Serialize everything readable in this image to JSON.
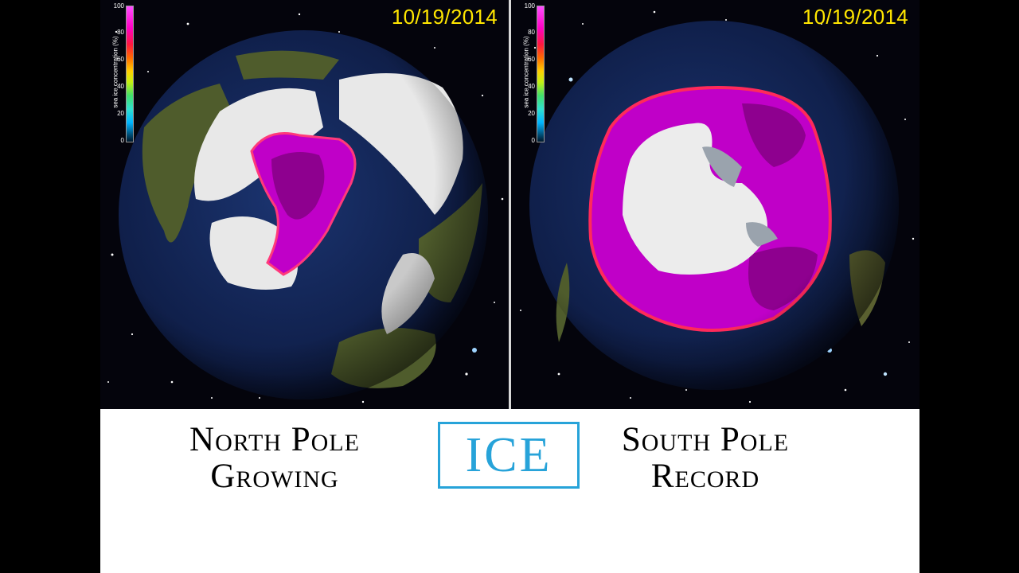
{
  "colorbar": {
    "label": "sea ice concentration (%)",
    "ticks": [
      "100",
      "80",
      "60",
      "40",
      "20",
      "0"
    ]
  },
  "left_panel": {
    "date": "10/19/2014"
  },
  "right_panel": {
    "date": "10/19/2014"
  },
  "captions": {
    "left_line1": "North Pole",
    "left_line2": "Growing",
    "center": "ICE",
    "right_line1": "South Pole",
    "right_line2": "Record"
  },
  "colors": {
    "accent": "#27a3d9",
    "date_text": "#ffe600",
    "ice_high": "#c000c8",
    "space": "#04040c",
    "ocean": "#10204a"
  }
}
